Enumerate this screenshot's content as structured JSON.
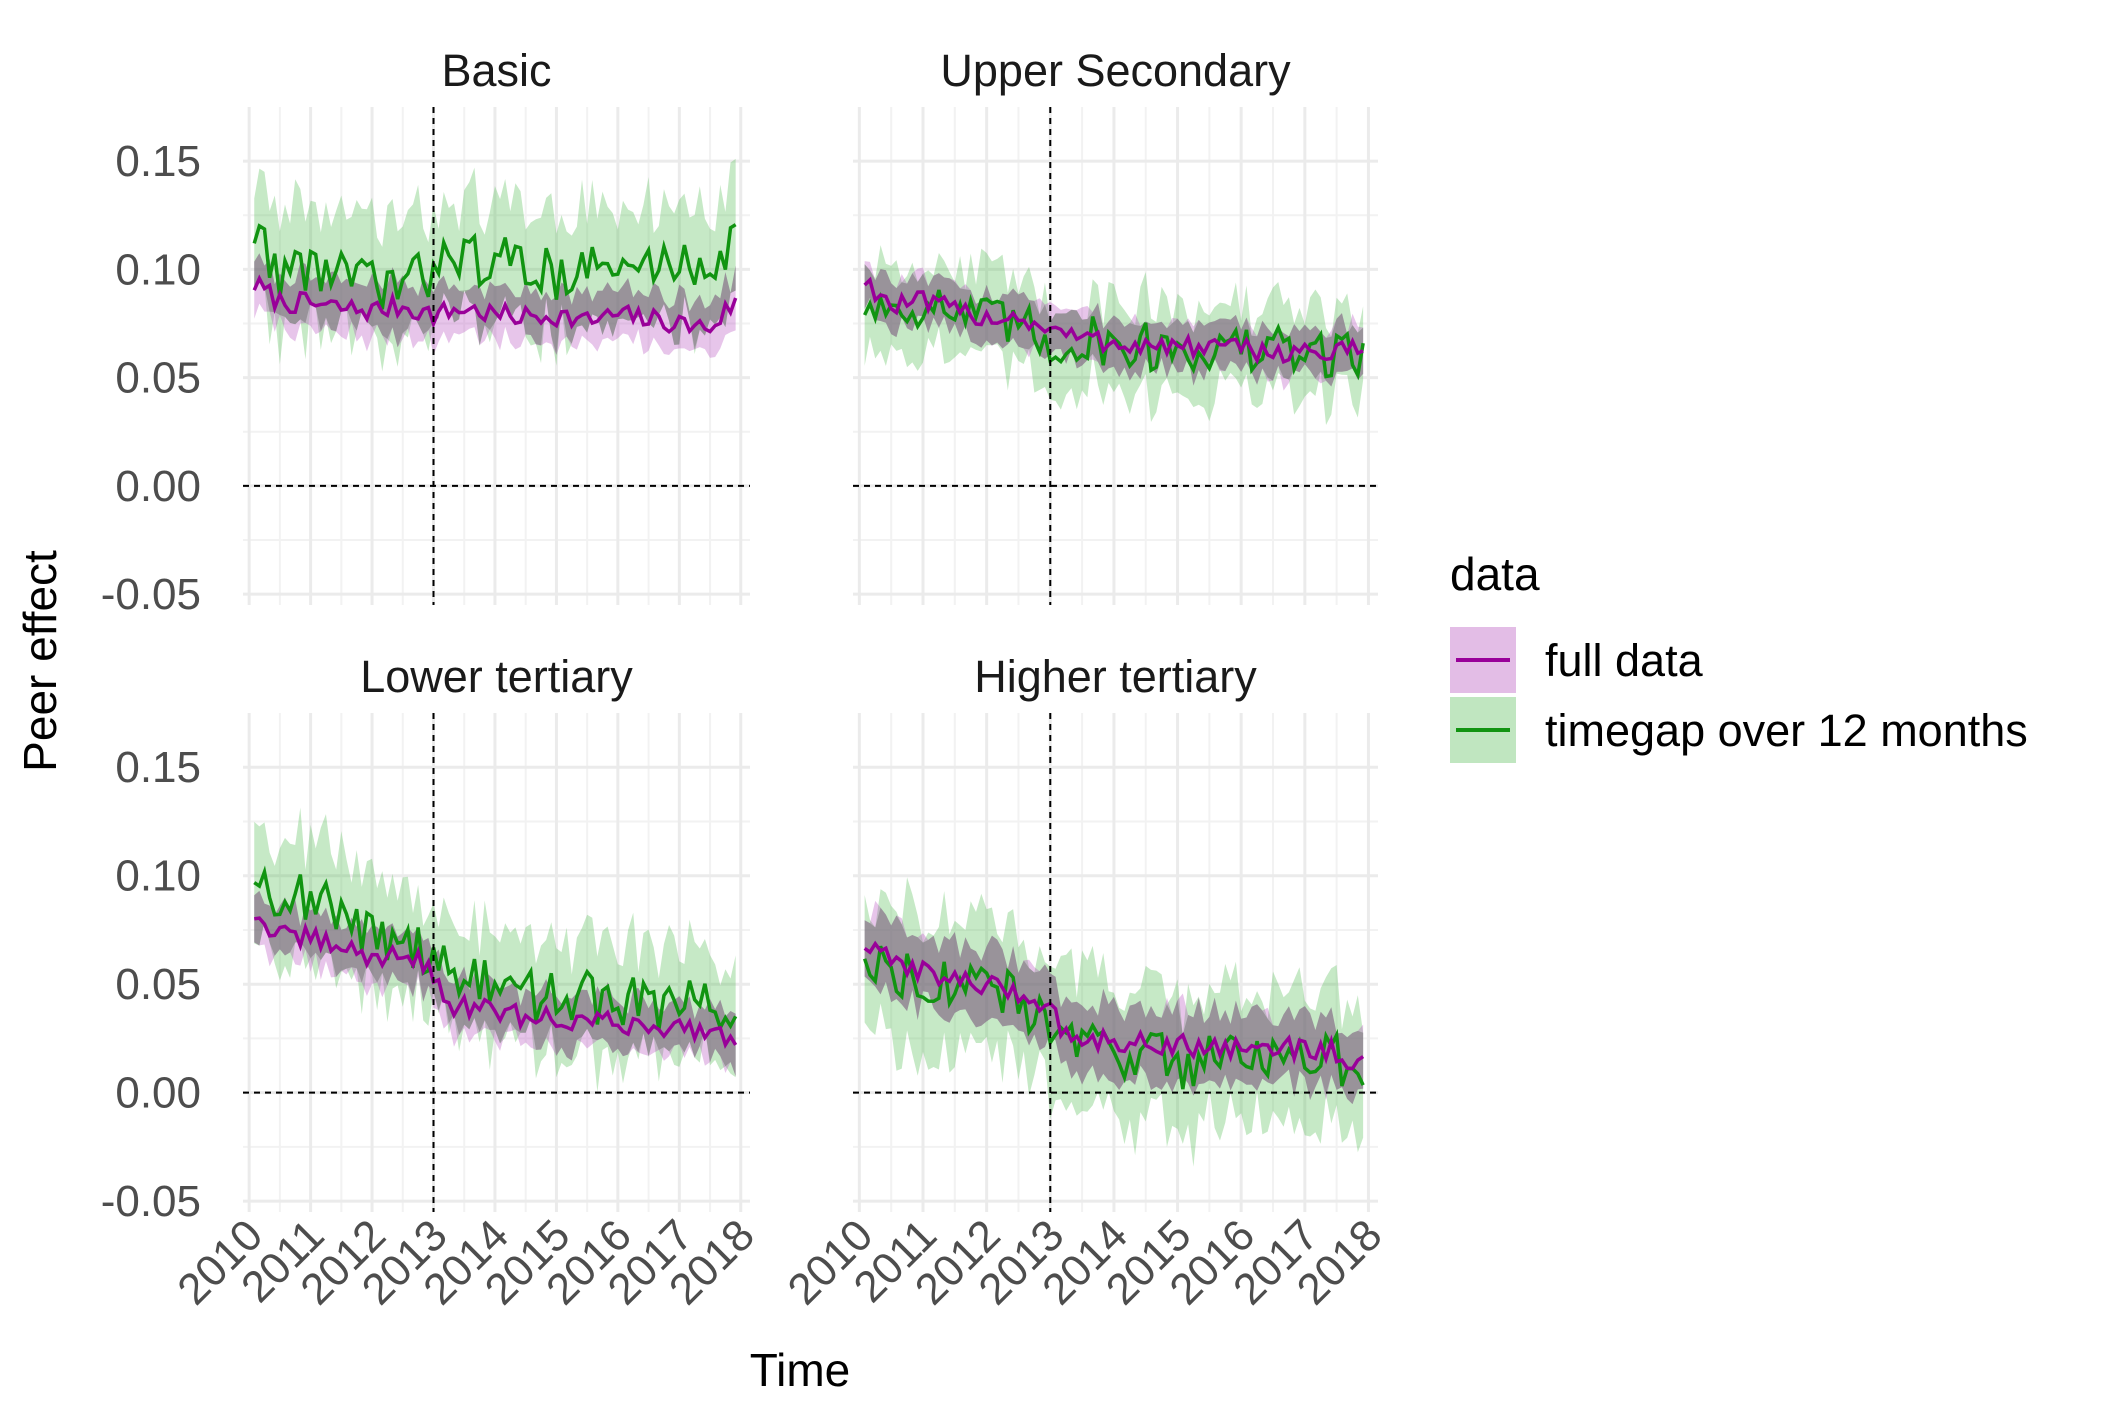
{
  "chart_data": {
    "type": "line",
    "title": "",
    "xlabel": "Time",
    "ylabel": "Peer effect",
    "ylim": [
      -0.055,
      0.175
    ],
    "y_ticks": [
      "0.15",
      "0.10",
      "0.05",
      "0.00",
      "-0.05"
    ],
    "y_tick_values": [
      0.15,
      0.1,
      0.05,
      0.0,
      -0.05
    ],
    "xlim": [
      2009.9,
      2018.15
    ],
    "x_ticks": [
      "2010",
      "2011",
      "2012",
      "2013",
      "2014",
      "2015",
      "2016",
      "2017",
      "2018"
    ],
    "x_tick_values": [
      2010,
      2011,
      2012,
      2013,
      2014,
      2015,
      2016,
      2017,
      2018
    ],
    "reference_lines": {
      "vertical_x": 2013.0,
      "horizontal_y": 0.0,
      "style": "dashed"
    },
    "grid": true,
    "legend": {
      "title": "data",
      "placement": "right",
      "entries": [
        {
          "name": "full data",
          "line_color": "#990099",
          "band_color": "#e3bde6"
        },
        {
          "name": "timegap over 12 months",
          "line_color": "#119411",
          "band_color": "#c0e6c0"
        }
      ]
    },
    "facets": [
      {
        "name": "Basic",
        "series": [
          {
            "name": "full data",
            "key_points": [
              [
                2010.1,
                0.093
              ],
              [
                2010.5,
                0.085
              ],
              [
                2011,
                0.084
              ],
              [
                2011.5,
                0.082
              ],
              [
                2012,
                0.081
              ],
              [
                2012.5,
                0.083
              ],
              [
                2013,
                0.079
              ],
              [
                2013.5,
                0.082
              ],
              [
                2014,
                0.079
              ],
              [
                2014.5,
                0.078
              ],
              [
                2015,
                0.079
              ],
              [
                2015.5,
                0.076
              ],
              [
                2016,
                0.079
              ],
              [
                2016.5,
                0.077
              ],
              [
                2017,
                0.075
              ],
              [
                2017.5,
                0.073
              ],
              [
                2017.9,
                0.085
              ]
            ],
            "band_halfwidth": 0.012
          },
          {
            "name": "timegap over 12 months",
            "key_points": [
              [
                2010.1,
                0.118
              ],
              [
                2010.5,
                0.098
              ],
              [
                2011,
                0.102
              ],
              [
                2011.5,
                0.098
              ],
              [
                2012,
                0.092
              ],
              [
                2012.5,
                0.093
              ],
              [
                2013,
                0.098
              ],
              [
                2013.2,
                0.118
              ],
              [
                2013.5,
                0.104
              ],
              [
                2014,
                0.104
              ],
              [
                2014.5,
                0.102
              ],
              [
                2015,
                0.098
              ],
              [
                2015.5,
                0.101
              ],
              [
                2016,
                0.099
              ],
              [
                2016.5,
                0.102
              ],
              [
                2017,
                0.103
              ],
              [
                2017.5,
                0.103
              ],
              [
                2017.9,
                0.112
              ]
            ],
            "band_halfwidth": 0.027
          }
        ]
      },
      {
        "name": "Upper Secondary",
        "series": [
          {
            "name": "full data",
            "key_points": [
              [
                2010.1,
                0.095
              ],
              [
                2010.5,
                0.083
              ],
              [
                2011,
                0.085
              ],
              [
                2011.5,
                0.081
              ],
              [
                2012,
                0.078
              ],
              [
                2012.5,
                0.078
              ],
              [
                2013,
                0.072
              ],
              [
                2013.5,
                0.068
              ],
              [
                2014,
                0.066
              ],
              [
                2014.5,
                0.065
              ],
              [
                2015,
                0.064
              ],
              [
                2015.5,
                0.064
              ],
              [
                2016,
                0.063
              ],
              [
                2016.5,
                0.062
              ],
              [
                2017,
                0.062
              ],
              [
                2017.5,
                0.061
              ],
              [
                2017.9,
                0.063
              ]
            ],
            "band_halfwidth": 0.011
          },
          {
            "name": "timegap over 12 months",
            "key_points": [
              [
                2010.1,
                0.084
              ],
              [
                2010.5,
                0.082
              ],
              [
                2011,
                0.085
              ],
              [
                2011.5,
                0.08
              ],
              [
                2012,
                0.076
              ],
              [
                2012.5,
                0.074
              ],
              [
                2013,
                0.065
              ],
              [
                2013.5,
                0.068
              ],
              [
                2014,
                0.066
              ],
              [
                2014.5,
                0.064
              ],
              [
                2015,
                0.064
              ],
              [
                2015.5,
                0.063
              ],
              [
                2016,
                0.063
              ],
              [
                2016.5,
                0.062
              ],
              [
                2017,
                0.062
              ],
              [
                2017.5,
                0.061
              ],
              [
                2017.9,
                0.063
              ]
            ],
            "band_halfwidth": 0.02
          }
        ]
      },
      {
        "name": "Lower tertiary",
        "series": [
          {
            "name": "full data",
            "key_points": [
              [
                2010.1,
                0.082
              ],
              [
                2010.5,
                0.072
              ],
              [
                2011,
                0.071
              ],
              [
                2011.5,
                0.067
              ],
              [
                2012,
                0.062
              ],
              [
                2012.5,
                0.065
              ],
              [
                2013,
                0.055
              ],
              [
                2013.2,
                0.041
              ],
              [
                2013.5,
                0.04
              ],
              [
                2014,
                0.037
              ],
              [
                2014.5,
                0.035
              ],
              [
                2015,
                0.034
              ],
              [
                2015.5,
                0.033
              ],
              [
                2016,
                0.032
              ],
              [
                2016.5,
                0.031
              ],
              [
                2017,
                0.03
              ],
              [
                2017.5,
                0.029
              ],
              [
                2017.9,
                0.025
              ]
            ],
            "band_halfwidth": 0.012
          },
          {
            "name": "timegap over 12 months",
            "key_points": [
              [
                2010.1,
                0.101
              ],
              [
                2010.5,
                0.092
              ],
              [
                2011,
                0.09
              ],
              [
                2011.5,
                0.08
              ],
              [
                2012,
                0.072
              ],
              [
                2012.5,
                0.073
              ],
              [
                2013,
                0.062
              ],
              [
                2013.5,
                0.052
              ],
              [
                2014,
                0.049
              ],
              [
                2014.5,
                0.045
              ],
              [
                2015,
                0.045
              ],
              [
                2015.5,
                0.044
              ],
              [
                2016,
                0.042
              ],
              [
                2016.5,
                0.041
              ],
              [
                2017,
                0.04
              ],
              [
                2017.5,
                0.04
              ],
              [
                2017.9,
                0.038
              ]
            ],
            "band_halfwidth": 0.026
          }
        ]
      },
      {
        "name": "Higher tertiary",
        "series": [
          {
            "name": "full data",
            "key_points": [
              [
                2010.1,
                0.068
              ],
              [
                2010.5,
                0.06
              ],
              [
                2011,
                0.057
              ],
              [
                2011.5,
                0.052
              ],
              [
                2012,
                0.049
              ],
              [
                2012.5,
                0.046
              ],
              [
                2013,
                0.04
              ],
              [
                2013.2,
                0.028
              ],
              [
                2013.5,
                0.025
              ],
              [
                2014,
                0.024
              ],
              [
                2014.5,
                0.023
              ],
              [
                2015,
                0.022
              ],
              [
                2015.5,
                0.021
              ],
              [
                2016,
                0.021
              ],
              [
                2016.5,
                0.021
              ],
              [
                2017,
                0.02
              ],
              [
                2017.5,
                0.019
              ],
              [
                2017.9,
                0.012
              ]
            ],
            "band_halfwidth": 0.016
          },
          {
            "name": "timegap over 12 months",
            "key_points": [
              [
                2010.1,
                0.065
              ],
              [
                2010.5,
                0.055
              ],
              [
                2011,
                0.055
              ],
              [
                2011.5,
                0.05
              ],
              [
                2012,
                0.047
              ],
              [
                2012.5,
                0.043
              ],
              [
                2013,
                0.03
              ],
              [
                2013.5,
                0.022
              ],
              [
                2014,
                0.018
              ],
              [
                2014.5,
                0.02
              ],
              [
                2015,
                0.012
              ],
              [
                2015.5,
                0.018
              ],
              [
                2016,
                0.018
              ],
              [
                2016.5,
                0.02
              ],
              [
                2017,
                0.015
              ],
              [
                2017.5,
                0.015
              ],
              [
                2017.9,
                0.012
              ]
            ],
            "band_halfwidth": 0.03
          }
        ]
      }
    ]
  }
}
